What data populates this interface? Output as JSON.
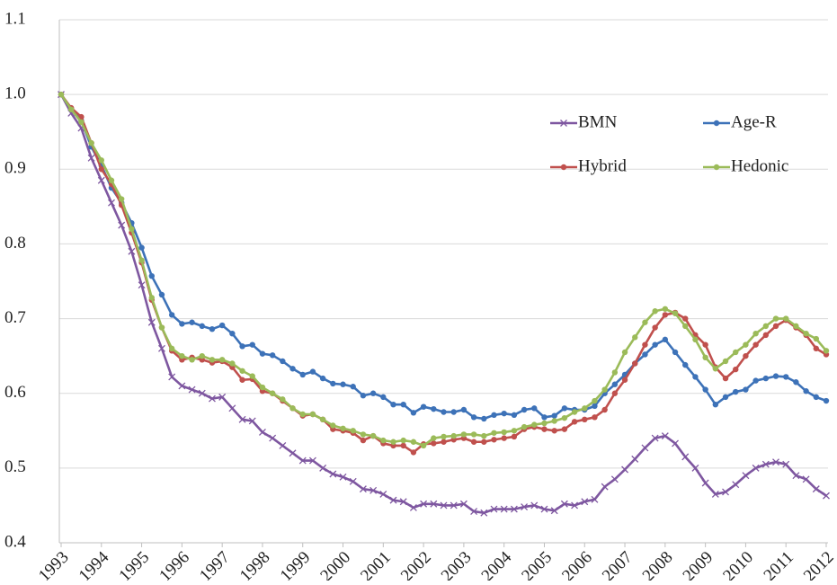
{
  "chart_data": {
    "type": "line",
    "categories": [
      "1993",
      null,
      null,
      null,
      "1994",
      null,
      null,
      null,
      "1995",
      null,
      null,
      null,
      "1996",
      null,
      null,
      null,
      "1997",
      null,
      null,
      null,
      "1998",
      null,
      null,
      null,
      "1999",
      null,
      null,
      null,
      "2000",
      null,
      null,
      null,
      "2001",
      null,
      null,
      null,
      "2002",
      null,
      null,
      null,
      "2003",
      null,
      null,
      null,
      "2004",
      null,
      null,
      null,
      "2005",
      null,
      null,
      null,
      "2006",
      null,
      null,
      null,
      "2007",
      null,
      null,
      null,
      "2008",
      null,
      null,
      null,
      "2009",
      null,
      null,
      null,
      "2010",
      null,
      null,
      null,
      "2011",
      null,
      null,
      null,
      "2012"
    ],
    "series": [
      {
        "name": "BMN",
        "color": "#7e57a0",
        "marker": "x",
        "values": [
          1.0,
          0.975,
          0.955,
          0.915,
          0.885,
          0.855,
          0.825,
          0.79,
          0.745,
          0.695,
          0.66,
          0.622,
          0.61,
          0.605,
          0.6,
          0.593,
          0.595,
          0.58,
          0.565,
          0.563,
          0.548,
          0.54,
          0.53,
          0.52,
          0.51,
          0.51,
          0.5,
          0.492,
          0.488,
          0.482,
          0.472,
          0.47,
          0.465,
          0.457,
          0.455,
          0.447,
          0.452,
          0.452,
          0.45,
          0.45,
          0.452,
          0.442,
          0.44,
          0.445,
          0.445,
          0.445,
          0.448,
          0.45,
          0.445,
          0.443,
          0.452,
          0.45,
          0.455,
          0.458,
          0.475,
          0.485,
          0.498,
          0.512,
          0.527,
          0.54,
          0.543,
          0.533,
          0.515,
          0.5,
          0.48,
          0.465,
          0.468,
          0.478,
          0.49,
          0.5,
          0.505,
          0.508,
          0.505,
          0.49,
          0.485,
          0.472,
          0.463
        ]
      },
      {
        "name": "Age-R",
        "color": "#3d72b8",
        "marker": "circle",
        "values": [
          1.0,
          0.98,
          0.965,
          0.93,
          0.905,
          0.875,
          0.855,
          0.828,
          0.795,
          0.757,
          0.732,
          0.705,
          0.693,
          0.695,
          0.69,
          0.686,
          0.691,
          0.68,
          0.663,
          0.665,
          0.653,
          0.651,
          0.643,
          0.633,
          0.625,
          0.629,
          0.62,
          0.613,
          0.612,
          0.609,
          0.597,
          0.6,
          0.595,
          0.585,
          0.585,
          0.574,
          0.582,
          0.579,
          0.575,
          0.575,
          0.578,
          0.568,
          0.566,
          0.571,
          0.573,
          0.571,
          0.578,
          0.58,
          0.568,
          0.57,
          0.58,
          0.578,
          0.578,
          0.583,
          0.6,
          0.612,
          0.625,
          0.64,
          0.652,
          0.665,
          0.672,
          0.655,
          0.638,
          0.622,
          0.605,
          0.585,
          0.595,
          0.602,
          0.605,
          0.617,
          0.62,
          0.623,
          0.622,
          0.615,
          0.603,
          0.595,
          0.59
        ]
      },
      {
        "name": "Hybrid",
        "color": "#c0504d",
        "marker": "circle",
        "values": [
          1.0,
          0.982,
          0.97,
          0.935,
          0.9,
          0.88,
          0.852,
          0.815,
          0.775,
          0.725,
          0.688,
          0.657,
          0.645,
          0.648,
          0.645,
          0.641,
          0.643,
          0.635,
          0.618,
          0.619,
          0.603,
          0.6,
          0.59,
          0.58,
          0.57,
          0.572,
          0.565,
          0.552,
          0.55,
          0.547,
          0.537,
          0.543,
          0.533,
          0.53,
          0.53,
          0.521,
          0.532,
          0.533,
          0.535,
          0.538,
          0.54,
          0.535,
          0.535,
          0.538,
          0.54,
          0.542,
          0.552,
          0.555,
          0.552,
          0.55,
          0.552,
          0.562,
          0.565,
          0.568,
          0.578,
          0.6,
          0.618,
          0.64,
          0.665,
          0.688,
          0.705,
          0.708,
          0.7,
          0.678,
          0.665,
          0.635,
          0.62,
          0.632,
          0.65,
          0.665,
          0.678,
          0.69,
          0.698,
          0.688,
          0.678,
          0.66,
          0.652
        ]
      },
      {
        "name": "Hedonic",
        "color": "#9bbb59",
        "marker": "circle",
        "values": [
          1.0,
          0.98,
          0.963,
          0.935,
          0.912,
          0.885,
          0.86,
          0.82,
          0.778,
          0.728,
          0.688,
          0.66,
          0.65,
          0.645,
          0.65,
          0.645,
          0.645,
          0.64,
          0.63,
          0.623,
          0.608,
          0.6,
          0.592,
          0.58,
          0.572,
          0.572,
          0.565,
          0.557,
          0.553,
          0.55,
          0.545,
          0.543,
          0.537,
          0.535,
          0.537,
          0.535,
          0.53,
          0.54,
          0.542,
          0.543,
          0.545,
          0.545,
          0.543,
          0.547,
          0.548,
          0.55,
          0.555,
          0.558,
          0.56,
          0.563,
          0.567,
          0.575,
          0.58,
          0.59,
          0.605,
          0.628,
          0.655,
          0.675,
          0.695,
          0.71,
          0.713,
          0.707,
          0.69,
          0.672,
          0.648,
          0.633,
          0.643,
          0.655,
          0.665,
          0.68,
          0.69,
          0.7,
          0.7,
          0.69,
          0.68,
          0.673,
          0.657
        ]
      }
    ],
    "ylim": [
      0.4,
      1.1
    ],
    "yticks": [
      0.4,
      0.5,
      0.6,
      0.7,
      0.8,
      0.9,
      {
        "value": 1.0,
        "label": "1.0"
      },
      1.1
    ],
    "grid": true,
    "legend": "upper right"
  }
}
